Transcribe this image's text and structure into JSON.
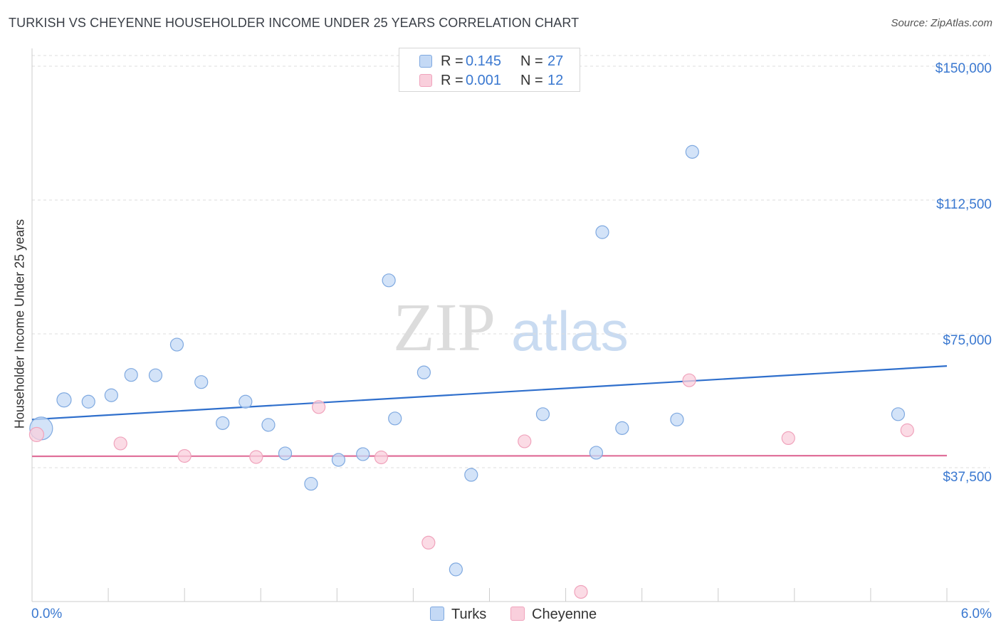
{
  "title": "TURKISH VS CHEYENNE HOUSEHOLDER INCOME UNDER 25 YEARS CORRELATION CHART",
  "source": "Source: ZipAtlas.com",
  "watermark": {
    "zip": "ZIP",
    "atlas": "atlas"
  },
  "legend_top": [
    {
      "label": "R =",
      "r": "0.145",
      "n_label": "N =",
      "n": "27"
    },
    {
      "label": "R =",
      "r": "0.001",
      "n_label": "N =",
      "n": "12"
    }
  ],
  "chart_data": {
    "type": "scatter",
    "title": "TURKISH VS CHEYENNE HOUSEHOLDER INCOME UNDER 25 YEARS CORRELATION CHART",
    "xlabel": "",
    "ylabel": "Householder Income Under 25 years",
    "xlim": [
      0,
      6
    ],
    "ylim": [
      0,
      153000
    ],
    "x_tick_labels": [
      "0.0%",
      "6.0%"
    ],
    "y_ticks": [
      37500,
      75000,
      112500,
      150000
    ],
    "y_tick_labels": [
      "$37,500",
      "$75,000",
      "$112,500",
      "$150,000"
    ],
    "colors": {
      "turks": "#7fa9e0",
      "turks_line": "#2f6fcc",
      "cheyenne": "#f0a3bc",
      "cheyenne_line": "#e0709a"
    },
    "series": [
      {
        "name": "Turks",
        "r": 0.145,
        "n": 27,
        "trend": [
          [
            0,
            51000
          ],
          [
            6,
            66000
          ]
        ],
        "points": [
          [
            0.06,
            48500,
            16
          ],
          [
            0.21,
            56500,
            10
          ],
          [
            0.37,
            56000,
            9
          ],
          [
            0.52,
            57800,
            9
          ],
          [
            0.65,
            63500,
            9
          ],
          [
            0.81,
            63400,
            9
          ],
          [
            0.95,
            72000,
            9
          ],
          [
            1.11,
            61500,
            9
          ],
          [
            1.25,
            50000,
            9
          ],
          [
            1.4,
            56000,
            9
          ],
          [
            1.55,
            49500,
            9
          ],
          [
            1.66,
            41500,
            9
          ],
          [
            1.83,
            33000,
            9
          ],
          [
            2.01,
            39700,
            9
          ],
          [
            2.17,
            41300,
            9
          ],
          [
            2.34,
            90000,
            9
          ],
          [
            2.38,
            51300,
            9
          ],
          [
            2.57,
            64200,
            9
          ],
          [
            2.78,
            9000,
            9
          ],
          [
            2.88,
            35500,
            9
          ],
          [
            3.35,
            52500,
            9
          ],
          [
            3.7,
            41700,
            9
          ],
          [
            3.74,
            103500,
            9
          ],
          [
            3.87,
            48600,
            9
          ],
          [
            4.23,
            51000,
            9
          ],
          [
            4.33,
            126000,
            9
          ],
          [
            5.68,
            52500,
            9
          ]
        ]
      },
      {
        "name": "Cheyenne",
        "r": 0.001,
        "n": 12,
        "trend": [
          [
            0,
            40700
          ],
          [
            6,
            40900
          ]
        ],
        "points": [
          [
            0.03,
            46800,
            10
          ],
          [
            0.58,
            44300,
            9
          ],
          [
            1.0,
            40800,
            9
          ],
          [
            1.47,
            40500,
            9
          ],
          [
            1.88,
            54500,
            9
          ],
          [
            2.29,
            40400,
            9
          ],
          [
            2.6,
            16500,
            9
          ],
          [
            3.23,
            44900,
            9
          ],
          [
            3.6,
            2700,
            9
          ],
          [
            4.31,
            62000,
            9
          ],
          [
            4.96,
            45800,
            9
          ],
          [
            5.74,
            48000,
            9
          ]
        ]
      }
    ]
  }
}
